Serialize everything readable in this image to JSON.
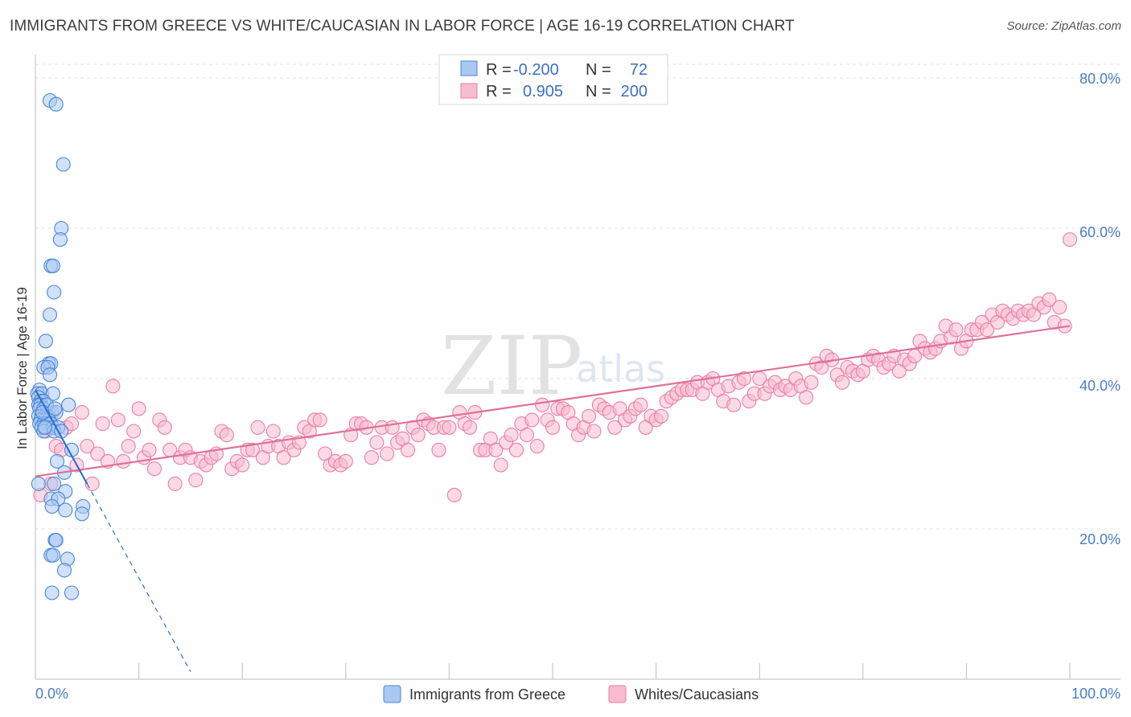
{
  "title": "IMMIGRANTS FROM GREECE VS WHITE/CAUCASIAN IN LABOR FORCE | AGE 16-19 CORRELATION CHART",
  "source": "Source: ZipAtlas.com",
  "watermark": {
    "zip": "ZIP",
    "atlas": "atlas"
  },
  "legend": {
    "r_label": "R =",
    "n_label": "N =",
    "series1": {
      "r": "-0.200",
      "n": "72"
    },
    "series2": {
      "r": "0.905",
      "n": "200"
    }
  },
  "colors": {
    "blue_fill": "#a9c8f2",
    "blue_stroke": "#4a86d8",
    "blue_line": "#2f6fd0",
    "pink_fill": "#f7bcd0",
    "pink_stroke": "#ea7ea3",
    "pink_line": "#e0709a"
  },
  "chart_data": {
    "type": "scatter",
    "title": "IMMIGRANTS FROM GREECE VS WHITE/CAUCASIAN IN LABOR FORCE | AGE 16-19 CORRELATION CHART",
    "xlabel": "",
    "ylabel": "In Labor Force | Age 16-19",
    "xlim": [
      0,
      100
    ],
    "ylim": [
      0,
      82
    ],
    "x_tick_labels": [
      "0.0%",
      "100.0%"
    ],
    "y_ticks": [
      20,
      40,
      60,
      80
    ],
    "y_tick_labels": [
      "20.0%",
      "40.0%",
      "60.0%",
      "80.0%"
    ],
    "series": [
      {
        "name": "Immigrants from Greece",
        "r": -0.2,
        "n": 72,
        "trend": {
          "x0": 0,
          "y0": 38.5,
          "x1": 5,
          "y1": 26.0,
          "dash_to_x": 15,
          "dash_to_y": 1.0
        },
        "points": [
          [
            1.4,
            77.0
          ],
          [
            2.0,
            76.5
          ],
          [
            2.7,
            68.5
          ],
          [
            2.5,
            60.0
          ],
          [
            2.4,
            58.5
          ],
          [
            1.5,
            55.0
          ],
          [
            1.7,
            55.0
          ],
          [
            1.8,
            51.5
          ],
          [
            1.4,
            48.5
          ],
          [
            1.0,
            45.0
          ],
          [
            1.3,
            42.0
          ],
          [
            1.5,
            42.0
          ],
          [
            0.8,
            41.5
          ],
          [
            1.2,
            41.5
          ],
          [
            1.4,
            40.5
          ],
          [
            0.4,
            38.5
          ],
          [
            0.2,
            38.0
          ],
          [
            0.6,
            38.0
          ],
          [
            1.7,
            38.0
          ],
          [
            0.3,
            37.5
          ],
          [
            0.5,
            37.0
          ],
          [
            0.8,
            37.0
          ],
          [
            0.3,
            36.5
          ],
          [
            0.5,
            36.5
          ],
          [
            3.2,
            36.5
          ],
          [
            0.4,
            36.0
          ],
          [
            0.8,
            36.0
          ],
          [
            1.3,
            35.5
          ],
          [
            1.6,
            35.5
          ],
          [
            2.0,
            35.5
          ],
          [
            0.3,
            35.0
          ],
          [
            0.6,
            35.0
          ],
          [
            0.9,
            35.0
          ],
          [
            1.2,
            35.0
          ],
          [
            0.5,
            34.5
          ],
          [
            0.9,
            34.5
          ],
          [
            1.3,
            34.5
          ],
          [
            0.4,
            34.0
          ],
          [
            0.8,
            34.0
          ],
          [
            1.1,
            34.0
          ],
          [
            1.5,
            34.0
          ],
          [
            0.6,
            33.5
          ],
          [
            1.0,
            33.5
          ],
          [
            1.7,
            33.5
          ],
          [
            2.2,
            33.5
          ],
          [
            0.8,
            33.0
          ],
          [
            1.8,
            33.0
          ],
          [
            2.5,
            33.0
          ],
          [
            3.5,
            30.5
          ],
          [
            2.1,
            29.0
          ],
          [
            2.8,
            27.5
          ],
          [
            0.3,
            26.0
          ],
          [
            1.8,
            26.0
          ],
          [
            2.9,
            25.0
          ],
          [
            1.5,
            24.0
          ],
          [
            2.2,
            24.0
          ],
          [
            1.6,
            23.0
          ],
          [
            2.9,
            22.5
          ],
          [
            4.6,
            23.0
          ],
          [
            4.5,
            22.0
          ],
          [
            1.9,
            18.5
          ],
          [
            2.0,
            18.5
          ],
          [
            1.5,
            16.5
          ],
          [
            1.7,
            16.5
          ],
          [
            3.1,
            16.0
          ],
          [
            2.8,
            14.5
          ],
          [
            1.6,
            11.5
          ],
          [
            3.5,
            11.5
          ],
          [
            0.9,
            33.5
          ],
          [
            1.1,
            36.5
          ],
          [
            0.7,
            35.5
          ],
          [
            1.9,
            36.0
          ]
        ]
      },
      {
        "name": "Whites/Caucasians",
        "r": 0.905,
        "n": 200,
        "trend": {
          "x0": 0,
          "y0": 27.0,
          "x1": 100,
          "y1": 47.0
        },
        "points": [
          [
            0.5,
            24.5
          ],
          [
            1.0,
            33.0
          ],
          [
            1.5,
            26.0
          ],
          [
            2.0,
            31.0
          ],
          [
            2.5,
            30.5
          ],
          [
            3.0,
            33.5
          ],
          [
            3.5,
            34.0
          ],
          [
            4.0,
            28.5
          ],
          [
            4.5,
            35.5
          ],
          [
            5.0,
            31.0
          ],
          [
            5.5,
            26.0
          ],
          [
            6.0,
            30.0
          ],
          [
            6.5,
            34.0
          ],
          [
            7.0,
            29.0
          ],
          [
            7.5,
            39.0
          ],
          [
            8.0,
            34.5
          ],
          [
            8.5,
            29.0
          ],
          [
            9.0,
            31.0
          ],
          [
            9.5,
            33.0
          ],
          [
            10.0,
            36.0
          ],
          [
            10.5,
            29.5
          ],
          [
            11.0,
            30.5
          ],
          [
            11.5,
            28.0
          ],
          [
            12.0,
            34.5
          ],
          [
            12.5,
            33.5
          ],
          [
            13.0,
            30.5
          ],
          [
            13.5,
            26.0
          ],
          [
            14.0,
            29.5
          ],
          [
            14.5,
            30.5
          ],
          [
            15.0,
            29.5
          ],
          [
            15.5,
            26.5
          ],
          [
            16.0,
            29.0
          ],
          [
            16.5,
            28.5
          ],
          [
            17.0,
            29.5
          ],
          [
            17.5,
            30.0
          ],
          [
            18.0,
            33.0
          ],
          [
            18.5,
            32.5
          ],
          [
            19.0,
            28.0
          ],
          [
            19.5,
            29.0
          ],
          [
            20.0,
            28.5
          ],
          [
            20.5,
            30.5
          ],
          [
            21.0,
            30.5
          ],
          [
            21.5,
            33.5
          ],
          [
            22.0,
            29.5
          ],
          [
            22.5,
            31.0
          ],
          [
            23.0,
            33.0
          ],
          [
            23.5,
            31.0
          ],
          [
            24.0,
            29.5
          ],
          [
            24.5,
            31.5
          ],
          [
            25.0,
            30.5
          ],
          [
            25.5,
            31.5
          ],
          [
            26.0,
            33.5
          ],
          [
            26.5,
            33.0
          ],
          [
            27.0,
            34.5
          ],
          [
            27.5,
            34.5
          ],
          [
            28.0,
            30.0
          ],
          [
            28.5,
            28.5
          ],
          [
            29.0,
            29.0
          ],
          [
            29.5,
            28.5
          ],
          [
            30.0,
            29.0
          ],
          [
            30.5,
            32.5
          ],
          [
            31.0,
            34.0
          ],
          [
            31.5,
            34.0
          ],
          [
            32.0,
            33.5
          ],
          [
            32.5,
            29.5
          ],
          [
            33.0,
            31.5
          ],
          [
            33.5,
            33.5
          ],
          [
            34.0,
            30.0
          ],
          [
            34.5,
            33.5
          ],
          [
            35.0,
            31.5
          ],
          [
            35.5,
            32.0
          ],
          [
            36.0,
            30.5
          ],
          [
            36.5,
            33.5
          ],
          [
            37.0,
            32.5
          ],
          [
            37.5,
            34.5
          ],
          [
            38.0,
            34.0
          ],
          [
            38.5,
            33.5
          ],
          [
            39.0,
            30.5
          ],
          [
            39.5,
            33.5
          ],
          [
            40.0,
            33.5
          ],
          [
            40.5,
            24.5
          ],
          [
            41.0,
            35.5
          ],
          [
            41.5,
            34.0
          ],
          [
            42.0,
            33.5
          ],
          [
            42.5,
            35.5
          ],
          [
            43.0,
            30.5
          ],
          [
            43.5,
            30.5
          ],
          [
            44.0,
            32.0
          ],
          [
            44.5,
            30.5
          ],
          [
            45.0,
            28.5
          ],
          [
            45.5,
            31.5
          ],
          [
            46.0,
            32.5
          ],
          [
            46.5,
            30.5
          ],
          [
            47.0,
            34.0
          ],
          [
            47.5,
            32.5
          ],
          [
            48.0,
            34.5
          ],
          [
            48.5,
            31.0
          ],
          [
            49.0,
            36.5
          ],
          [
            49.5,
            34.5
          ],
          [
            50.0,
            33.5
          ],
          [
            50.5,
            36.0
          ],
          [
            51.0,
            36.0
          ],
          [
            51.5,
            35.5
          ],
          [
            52.0,
            34.0
          ],
          [
            52.5,
            32.5
          ],
          [
            53.0,
            33.5
          ],
          [
            53.5,
            35.0
          ],
          [
            54.0,
            33.0
          ],
          [
            54.5,
            36.5
          ],
          [
            55.0,
            36.0
          ],
          [
            55.5,
            35.5
          ],
          [
            56.0,
            33.5
          ],
          [
            56.5,
            36.0
          ],
          [
            57.0,
            34.5
          ],
          [
            57.5,
            35.0
          ],
          [
            58.0,
            36.0
          ],
          [
            58.5,
            36.5
          ],
          [
            59.0,
            33.5
          ],
          [
            59.5,
            35.0
          ],
          [
            60.0,
            34.5
          ],
          [
            60.5,
            35.0
          ],
          [
            61.0,
            37.0
          ],
          [
            61.5,
            37.5
          ],
          [
            62.0,
            38.0
          ],
          [
            62.5,
            38.5
          ],
          [
            63.0,
            38.5
          ],
          [
            63.5,
            38.5
          ],
          [
            64.0,
            39.5
          ],
          [
            64.5,
            38.0
          ],
          [
            65.0,
            39.5
          ],
          [
            65.5,
            40.0
          ],
          [
            66.0,
            38.5
          ],
          [
            66.5,
            37.0
          ],
          [
            67.0,
            39.0
          ],
          [
            67.5,
            36.5
          ],
          [
            68.0,
            39.5
          ],
          [
            68.5,
            40.0
          ],
          [
            69.0,
            37.0
          ],
          [
            69.5,
            38.0
          ],
          [
            70.0,
            40.0
          ],
          [
            70.5,
            38.0
          ],
          [
            71.0,
            39.0
          ],
          [
            71.5,
            39.5
          ],
          [
            72.0,
            38.5
          ],
          [
            72.5,
            39.0
          ],
          [
            73.0,
            38.5
          ],
          [
            73.5,
            40.0
          ],
          [
            74.0,
            39.0
          ],
          [
            74.5,
            37.5
          ],
          [
            75.0,
            39.5
          ],
          [
            75.5,
            42.0
          ],
          [
            76.0,
            41.5
          ],
          [
            76.5,
            43.0
          ],
          [
            77.0,
            42.5
          ],
          [
            77.5,
            40.5
          ],
          [
            78.0,
            39.5
          ],
          [
            78.5,
            41.5
          ],
          [
            79.0,
            41.0
          ],
          [
            79.5,
            40.5
          ],
          [
            80.0,
            41.0
          ],
          [
            80.5,
            42.5
          ],
          [
            81.0,
            43.0
          ],
          [
            81.5,
            42.5
          ],
          [
            82.0,
            41.5
          ],
          [
            82.5,
            42.0
          ],
          [
            83.0,
            43.0
          ],
          [
            83.5,
            41.0
          ],
          [
            84.0,
            42.5
          ],
          [
            84.5,
            42.0
          ],
          [
            85.0,
            43.0
          ],
          [
            85.5,
            45.0
          ],
          [
            86.0,
            44.0
          ],
          [
            86.5,
            43.5
          ],
          [
            87.0,
            44.0
          ],
          [
            87.5,
            45.0
          ],
          [
            88.0,
            47.0
          ],
          [
            88.5,
            45.5
          ],
          [
            89.0,
            46.5
          ],
          [
            89.5,
            44.0
          ],
          [
            90.0,
            45.0
          ],
          [
            90.5,
            46.5
          ],
          [
            91.0,
            46.5
          ],
          [
            91.5,
            47.5
          ],
          [
            92.0,
            46.5
          ],
          [
            92.5,
            48.5
          ],
          [
            93.0,
            47.5
          ],
          [
            93.5,
            49.0
          ],
          [
            94.0,
            48.5
          ],
          [
            94.5,
            48.0
          ],
          [
            95.0,
            49.0
          ],
          [
            95.5,
            48.5
          ],
          [
            96.0,
            49.0
          ],
          [
            96.5,
            48.5
          ],
          [
            97.0,
            50.0
          ],
          [
            97.5,
            49.5
          ],
          [
            98.0,
            50.5
          ],
          [
            98.5,
            47.5
          ],
          [
            99.0,
            49.5
          ],
          [
            99.5,
            47.0
          ],
          [
            100.0,
            58.5
          ]
        ]
      }
    ]
  }
}
